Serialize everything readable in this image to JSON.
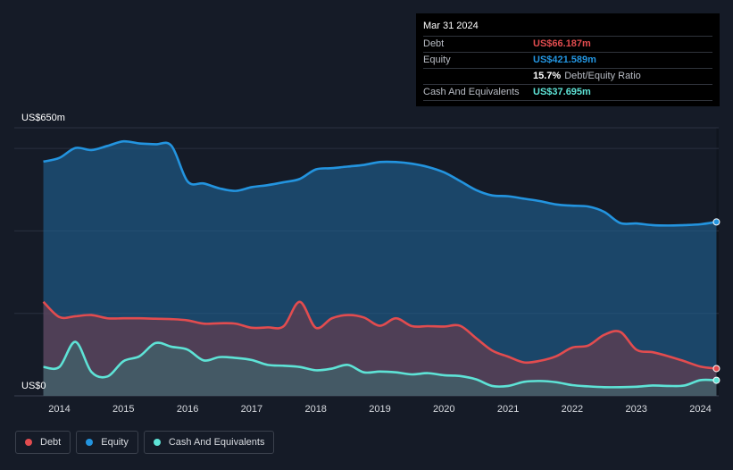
{
  "chart_data": {
    "type": "area",
    "ylim": [
      0,
      650
    ],
    "y_top_label": "US$650m",
    "y_bottom_label": "US$0",
    "x_ticks": [
      "2014",
      "2015",
      "2016",
      "2017",
      "2018",
      "2019",
      "2020",
      "2021",
      "2022",
      "2023",
      "2024"
    ],
    "x_tick_values": [
      2014,
      2015,
      2016,
      2017,
      2018,
      2019,
      2020,
      2021,
      2022,
      2023,
      2024
    ],
    "x_range": [
      2013.7,
      2024.25
    ],
    "series": [
      {
        "name": "Equity",
        "color": "#2394df",
        "x": [
          2013.75,
          2014.0,
          2014.25,
          2014.5,
          2014.75,
          2015.0,
          2015.25,
          2015.5,
          2015.75,
          2016.0,
          2016.25,
          2016.5,
          2016.75,
          2017.0,
          2017.25,
          2017.5,
          2017.75,
          2018.0,
          2018.25,
          2018.5,
          2018.75,
          2019.0,
          2019.25,
          2019.5,
          2019.75,
          2020.0,
          2020.25,
          2020.5,
          2020.75,
          2021.0,
          2021.25,
          2021.5,
          2021.75,
          2022.0,
          2022.25,
          2022.5,
          2022.75,
          2023.0,
          2023.25,
          2023.5,
          2023.75,
          2024.0,
          2024.25
        ],
        "values": [
          568,
          577,
          601,
          596,
          606,
          617,
          612,
          610,
          606,
          520,
          515,
          503,
          497,
          506,
          511,
          518,
          526,
          549,
          552,
          556,
          560,
          567,
          567,
          563,
          555,
          542,
          521,
          499,
          486,
          484,
          478,
          472,
          464,
          461,
          459,
          446,
          419,
          418,
          414,
          413,
          414,
          416,
          421.589
        ]
      },
      {
        "name": "Debt",
        "color": "#e24c4f",
        "x": [
          2013.75,
          2014.0,
          2014.25,
          2014.5,
          2014.75,
          2015.0,
          2015.25,
          2015.5,
          2015.75,
          2016.0,
          2016.25,
          2016.5,
          2016.75,
          2017.0,
          2017.25,
          2017.5,
          2017.75,
          2018.0,
          2018.25,
          2018.5,
          2018.75,
          2019.0,
          2019.25,
          2019.5,
          2019.75,
          2020.0,
          2020.25,
          2020.5,
          2020.75,
          2021.0,
          2021.25,
          2021.5,
          2021.75,
          2022.0,
          2022.25,
          2022.5,
          2022.75,
          2023.0,
          2023.25,
          2023.5,
          2023.75,
          2024.0,
          2024.25
        ],
        "values": [
          228,
          191,
          193,
          196,
          188,
          188,
          188,
          187,
          186,
          183,
          175,
          176,
          175,
          165,
          166,
          169,
          228,
          165,
          188,
          196,
          190,
          170,
          188,
          169,
          169,
          168,
          170,
          140,
          110,
          95,
          81,
          85,
          96,
          117,
          122,
          148,
          155,
          112,
          106,
          96,
          84,
          71,
          66.187
        ]
      },
      {
        "name": "Cash And Equivalents",
        "color": "#5ee3d6",
        "x": [
          2013.75,
          2014.0,
          2014.25,
          2014.5,
          2014.75,
          2015.0,
          2015.25,
          2015.5,
          2015.75,
          2016.0,
          2016.25,
          2016.5,
          2016.75,
          2017.0,
          2017.25,
          2017.5,
          2017.75,
          2018.0,
          2018.25,
          2018.5,
          2018.75,
          2019.0,
          2019.25,
          2019.5,
          2019.75,
          2020.0,
          2020.25,
          2020.5,
          2020.75,
          2021.0,
          2021.25,
          2021.5,
          2021.75,
          2022.0,
          2022.25,
          2022.5,
          2022.75,
          2023.0,
          2023.25,
          2023.5,
          2023.75,
          2024.0,
          2024.25
        ],
        "values": [
          70,
          70,
          131,
          58,
          47,
          84,
          96,
          128,
          119,
          112,
          86,
          94,
          92,
          87,
          75,
          73,
          70,
          62,
          66,
          75,
          57,
          59,
          57,
          52,
          55,
          50,
          48,
          40,
          24,
          24,
          34,
          36,
          33,
          26,
          23,
          21,
          21,
          22,
          25,
          24,
          25,
          38,
          37.695
        ]
      }
    ]
  },
  "tooltip": {
    "date": "Mar 31 2024",
    "rows": [
      {
        "label": "Debt",
        "value": "US$66.187m",
        "color": "#e24c4f"
      },
      {
        "label": "Equity",
        "value": "US$421.589m",
        "color": "#2394df"
      },
      {
        "label": "",
        "value": "15.7%",
        "extra": "Debt/Equity Ratio",
        "color": "#ffffff"
      },
      {
        "label": "Cash And Equivalents",
        "value": "US$37.695m",
        "color": "#5ee3d6"
      }
    ]
  },
  "legend": [
    {
      "label": "Debt",
      "color": "#e24c4f"
    },
    {
      "label": "Equity",
      "color": "#2394df"
    },
    {
      "label": "Cash And Equivalents",
      "color": "#5ee3d6"
    }
  ]
}
